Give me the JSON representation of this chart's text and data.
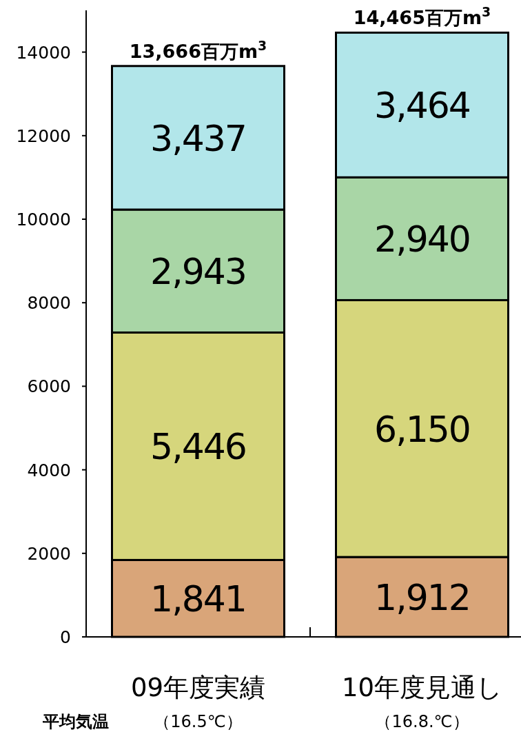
{
  "chart_data": {
    "type": "bar",
    "stacked": true,
    "categories": [
      "09年度実績",
      "10年度見通し"
    ],
    "series": [
      {
        "color": "#d9a579",
        "values": [
          1841,
          1912
        ],
        "value_labels": [
          "1,841",
          "1,912"
        ]
      },
      {
        "color": "#d6d67c",
        "values": [
          5446,
          6150
        ],
        "value_labels": [
          "5,446",
          "6,150"
        ]
      },
      {
        "color": "#a9d6a6",
        "values": [
          2943,
          2940
        ],
        "value_labels": [
          "2,943",
          "2,940"
        ]
      },
      {
        "color": "#b2e6ea",
        "values": [
          3437,
          3464
        ],
        "value_labels": [
          "3,437",
          "3,464"
        ]
      }
    ],
    "totals": [
      "13,666百万m$^{3}$",
      "14,465百万m$^{3}$"
    ],
    "ylim": [
      0,
      15000
    ],
    "yticks": [
      0,
      2000,
      4000,
      6000,
      8000,
      10000,
      12000,
      14000
    ],
    "annotations": [
      "平均気温",
      "（16.5℃）",
      "（16.8.℃）"
    ],
    "grid": false
  }
}
